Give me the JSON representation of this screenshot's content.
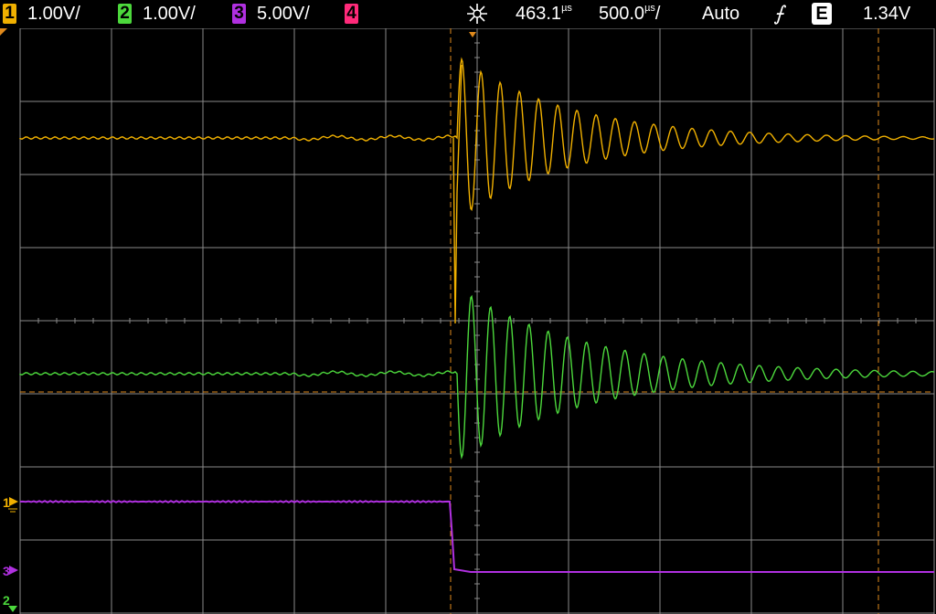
{
  "status_bar": {
    "channels": [
      {
        "number": "1",
        "scale": "1.00V/",
        "color": "#f0b000"
      },
      {
        "number": "2",
        "scale": "1.00V/",
        "color": "#4cd83c"
      },
      {
        "number": "3",
        "scale": "5.00V/",
        "color": "#b030e0"
      },
      {
        "number": "4",
        "scale": "",
        "color": "#ff2a7a"
      }
    ],
    "trigger_position": "463.1",
    "trigger_position_unit": "µs",
    "timebase": "500.0",
    "timebase_unit": "µs",
    "timebase_suffix": "/",
    "trigger_mode": "Auto",
    "edge_symbol": "⨍",
    "source_box": "E",
    "trigger_level": "1.34V"
  },
  "markers": {
    "ch1": "1",
    "ch3": "3",
    "ch2": "2"
  },
  "colors": {
    "ch1": "#f0b000",
    "ch2": "#4cd83c",
    "ch3": "#b030e0",
    "grid": "#8a8a8a",
    "cursor": "#e08a1c"
  },
  "icons": [
    "trigger-position-icon",
    "trigger-edge-icon",
    "ground-marker-icon"
  ]
}
